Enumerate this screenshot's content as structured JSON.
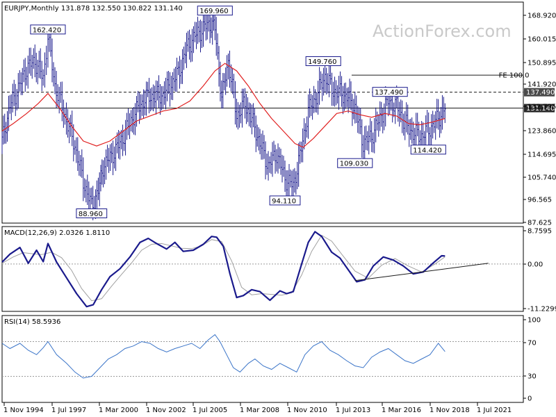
{
  "chart_data": {
    "type": "line",
    "style": "ohlc-bar",
    "watermark": "ActionForex.com",
    "x_ticks": [
      "1 Nov 1994",
      "1 Jul 1997",
      "1 Mar 2000",
      "1 Nov 2002",
      "1 Jul 2005",
      "1 Mar 2008",
      "1 Nov 2010",
      "1 Jul 2013",
      "1 Mar 2016",
      "1 Nov 2018",
      "1 Jul 2021"
    ],
    "panels": [
      {
        "id": "price",
        "title": "EURJPY,Monthly  131.878 132.550 130.822 131.140",
        "y_ticks": [
          "168.920",
          "160.015",
          "150.895",
          "141.920",
          "132.795",
          "123.860",
          "114.695",
          "105.740",
          "96.565",
          "87.625"
        ],
        "ylim": [
          85.2,
          173.5
        ],
        "grid": false,
        "series": [
          {
            "kind": "price-close",
            "color": "#1a1a8c",
            "x": [
              1994.83,
              1995.3,
              1995.8,
              1996.3,
              1996.8,
              1997.3,
              1997.58,
              1998.0,
              1998.6,
              1999.2,
              1999.7,
              2000.2,
              2000.6,
              2000.9,
              2001.4,
              2001.9,
              2002.4,
              2002.9,
              2003.4,
              2003.9,
              2004.4,
              2004.9,
              2005.4,
              2005.9,
              2006.4,
              2006.9,
              2007.3,
              2007.6,
              2008.0,
              2008.4,
              2008.9,
              2009.4,
              2009.9,
              2010.3,
              2010.8,
              2011.3,
              2011.8,
              2012.3,
              2012.7,
              2013.2,
              2013.7,
              2014.2,
              2014.7,
              2015.2,
              2015.6,
              2016.0,
              2016.5,
              2017.0,
              2017.5,
              2018.0,
              2018.5,
              2019.0,
              2019.5,
              2020.0,
              2020.5,
              2021.0,
              2021.4
            ],
            "values": [
              118,
              132,
              139,
              147,
              150,
              143,
              160,
              140,
              128,
              116,
              102,
              92,
              98,
              108,
              112,
              117,
              124,
              130,
              135,
              136,
              136,
              140,
              145,
              155,
              160,
              163,
              165,
              163,
              135,
              150,
              128,
              133,
              125,
              117,
              108,
              113,
              103,
              100,
              112,
              130,
              136,
              144,
              138,
              137,
              135,
              131,
              117,
              120,
              127,
              134,
              132,
              125,
              121,
              120,
              123,
              127,
              131.14
            ]
          },
          {
            "kind": "moving-average",
            "color": "#e02020",
            "x": [
              1994.83,
              1995.5,
              1996.3,
              1997.0,
              1997.58,
              1998.3,
              1999.0,
              1999.7,
              2000.5,
              2001.3,
              2002.1,
              2002.9,
              2003.7,
              2004.5,
              2005.3,
              2006.1,
              2006.9,
              2007.6,
              2008.2,
              2008.9,
              2009.6,
              2010.3,
              2011.0,
              2011.7,
              2012.4,
              2012.9,
              2013.5,
              2014.2,
              2014.9,
              2015.6,
              2016.3,
              2017.0,
              2017.8,
              2018.5,
              2019.2,
              2019.9,
              2020.6,
              2021.4
            ],
            "values": [
              122,
              125,
              129,
              133,
              137,
              131,
              124,
              118,
              116,
              118,
              122,
              126,
              128,
              130,
              131,
              134,
              140,
              146,
              149,
              146,
              140,
              133,
              127,
              122,
              117,
              115.5,
              119,
              124,
              129,
              130,
              128.5,
              127.5,
              129,
              128,
              125,
              124.5,
              125.5,
              127
            ]
          }
        ],
        "annotations": [
          {
            "text": "88.960",
            "x": 2000.2,
            "y": 88.96
          },
          {
            "text": "162.420",
            "x": 1997.58,
            "y": 162.42
          },
          {
            "text": "169.960",
            "x": 2007.6,
            "y": 169.96
          },
          {
            "text": "94.110",
            "x": 2011.8,
            "y": 94.11
          },
          {
            "text": "149.760",
            "x": 2014.1,
            "y": 149.76
          },
          {
            "text": "109.030",
            "x": 2016.0,
            "y": 109.03
          },
          {
            "text": "137.490",
            "x": 2018.1,
            "y": 137.49
          },
          {
            "text": "114.420",
            "x": 2020.4,
            "y": 114.42
          },
          {
            "text": "FE 100.0",
            "x": 2025.8,
            "y": 144.3
          }
        ],
        "price_tags": [
          {
            "text": "137.490",
            "y": 137.49,
            "bg": "#4a4a4a"
          },
          {
            "text": "131.140",
            "y": 131.14,
            "bg": "#2b2b2b"
          }
        ],
        "lines": [
          {
            "kind": "dashed",
            "y": 137.49,
            "from": 1994.83,
            "to": 2026.1
          },
          {
            "kind": "solid",
            "y": 131.14,
            "from": 1994.83,
            "to": 2026.1
          },
          {
            "kind": "solid",
            "y": 144.3,
            "from": 2015.8,
            "to": 2026.1
          }
        ]
      },
      {
        "id": "macd",
        "title": "MACD(12,26,9) 2.0326 1.8110",
        "y_ticks": [
          "8.7595",
          "0.00",
          "-11.2299"
        ],
        "ylim": [
          -12,
          9.5
        ],
        "series": [
          {
            "name": "MACD",
            "color": "#1a1a8c",
            "x": [
              1994.83,
              1995.3,
              1995.9,
              1996.4,
              1996.9,
              1997.3,
              1997.58,
              1998.1,
              1998.7,
              1999.3,
              1999.9,
              2000.3,
              2000.8,
              2001.3,
              2001.9,
              2002.5,
              2003.1,
              2003.6,
              2004.1,
              2004.7,
              2005.2,
              2005.7,
              2006.3,
              2006.9,
              2007.4,
              2007.7,
              2008.1,
              2008.5,
              2008.9,
              2009.3,
              2009.8,
              2010.3,
              2010.9,
              2011.5,
              2011.9,
              2012.3,
              2012.8,
              2013.2,
              2013.6,
              2014.0,
              2014.6,
              2015.1,
              2015.6,
              2016.1,
              2016.6,
              2017.1,
              2017.7,
              2018.3,
              2018.9,
              2019.5,
              2020.1,
              2020.7,
              2021.2,
              2021.4
            ],
            "values": [
              0.5,
              2.5,
              4.2,
              0.2,
              3.5,
              0.6,
              5.2,
              0.5,
              -3.5,
              -7.5,
              -10.8,
              -10.3,
              -6.5,
              -3.2,
              -1.2,
              1.8,
              5.5,
              6.5,
              5.2,
              3.8,
              5.5,
              3.2,
              3.5,
              5.0,
              7.0,
              6.8,
              4.5,
              -2.5,
              -8.5,
              -8.0,
              -6.5,
              -7.0,
              -9.2,
              -6.8,
              -7.5,
              -7.0,
              0.0,
              5.5,
              8.2,
              7.0,
              3.0,
              1.5,
              -1.5,
              -4.5,
              -4.0,
              -0.5,
              1.8,
              1.0,
              -0.5,
              -2.5,
              -2.0,
              0.3,
              2.1,
              2.03
            ]
          },
          {
            "name": "Signal",
            "color": "#a0a0a0",
            "x": [
              1994.83,
              1995.5,
              1996.1,
              1996.7,
              1997.2,
              1997.8,
              1998.4,
              1999.0,
              1999.6,
              2000.2,
              2000.8,
              2001.4,
              2002.0,
              2002.6,
              2003.2,
              2003.8,
              2004.4,
              2005.0,
              2005.6,
              2006.2,
              2006.8,
              2007.4,
              2008.0,
              2008.6,
              2009.2,
              2009.8,
              2010.4,
              2011.0,
              2011.6,
              2012.2,
              2012.8,
              2013.4,
              2014.0,
              2014.6,
              2015.2,
              2016.0,
              2016.8,
              2017.6,
              2018.4,
              2019.2,
              2020.0,
              2020.8,
              2021.4
            ],
            "values": [
              0.2,
              1.8,
              2.9,
              2.6,
              2.4,
              3.0,
              1.6,
              -1.6,
              -6.2,
              -9.3,
              -8.8,
              -5.6,
              -2.6,
              0.3,
              3.5,
              5.0,
              5.2,
              4.6,
              4.0,
              3.9,
              4.6,
              6.2,
              5.7,
              0.8,
              -5.9,
              -7.8,
              -7.5,
              -7.7,
              -7.9,
              -7.3,
              -2.8,
              3.2,
              7.3,
              5.8,
              2.5,
              -1.8,
              -3.6,
              -0.3,
              1.4,
              -0.5,
              -2.0,
              0.0,
              1.81
            ]
          }
        ],
        "trendline": {
          "x": [
            2016.0,
            2024.0
          ],
          "values": [
            -4.2,
            0.2
          ]
        }
      },
      {
        "id": "rsi",
        "title": "RSI(14) 58.5936",
        "y_ticks": [
          "100",
          "70",
          "30",
          "0"
        ],
        "ylim": [
          0,
          100
        ],
        "levels": [
          70,
          30
        ],
        "series": [
          {
            "name": "RSI",
            "color": "#3a74c8",
            "x": [
              1994.83,
              1995.3,
              1995.9,
              1996.4,
              1996.9,
              1997.3,
              1997.58,
              1998.1,
              1998.7,
              1999.2,
              1999.7,
              2000.2,
              2000.7,
              2001.2,
              2001.7,
              2002.2,
              2002.7,
              2003.2,
              2003.7,
              2004.2,
              2004.7,
              2005.2,
              2005.7,
              2006.2,
              2006.7,
              2007.2,
              2007.6,
              2007.9,
              2008.3,
              2008.7,
              2009.1,
              2009.6,
              2010.0,
              2010.5,
              2011.0,
              2011.5,
              2012.0,
              2012.5,
              2013.0,
              2013.5,
              2014.0,
              2014.5,
              2015.0,
              2015.5,
              2016.0,
              2016.5,
              2017.0,
              2017.5,
              2018.0,
              2018.5,
              2019.0,
              2019.5,
              2020.0,
              2020.5,
              2021.0,
              2021.4
            ],
            "values": [
              68,
              62,
              68,
              60,
              55,
              63,
              70,
              55,
              45,
              35,
              28,
              30,
              40,
              50,
              55,
              62,
              65,
              70,
              68,
              62,
              58,
              62,
              65,
              68,
              62,
              72,
              78,
              70,
              55,
              40,
              35,
              45,
              50,
              42,
              38,
              45,
              40,
              35,
              55,
              65,
              70,
              60,
              55,
              48,
              42,
              40,
              52,
              58,
              62,
              55,
              48,
              45,
              50,
              55,
              68,
              58.59
            ]
          }
        ]
      }
    ]
  }
}
